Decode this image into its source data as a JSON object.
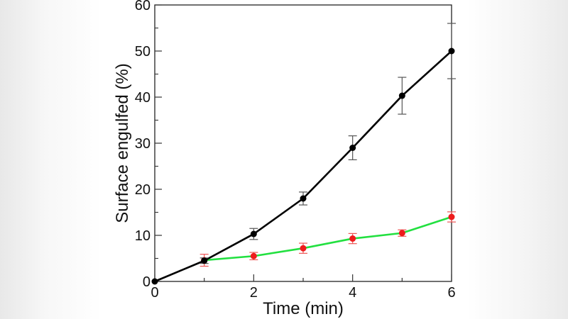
{
  "chart_data": {
    "type": "line",
    "title": "",
    "xlabel": "Time (min)",
    "ylabel": "Surface engulfed (%)",
    "xlim": [
      0,
      6
    ],
    "ylim": [
      0,
      60
    ],
    "x_ticks": [
      "0",
      "2",
      "4",
      "6"
    ],
    "y_ticks": [
      "0",
      "10",
      "20",
      "30",
      "40",
      "50",
      "60"
    ],
    "grid": false,
    "legend": null,
    "series": [
      {
        "name": "black series",
        "line_color": "#000000",
        "marker_color": "#000000",
        "errorbar_color": "#555555",
        "x": [
          0,
          1,
          2,
          3,
          4,
          5,
          6
        ],
        "values": [
          0,
          4.5,
          10.3,
          18.0,
          29.0,
          40.3,
          50.0
        ],
        "error": [
          0,
          0.6,
          1.2,
          1.4,
          2.6,
          4.0,
          6.0
        ]
      },
      {
        "name": "red/green series",
        "line_color": "#22e040",
        "marker_color": "#ee1c1c",
        "errorbar_color": "#ee5555",
        "x": [
          1,
          2,
          3,
          4,
          5,
          6
        ],
        "values": [
          4.6,
          5.5,
          7.2,
          9.3,
          10.5,
          14.0
        ],
        "error": [
          1.3,
          0.8,
          1.1,
          1.1,
          0.7,
          1.1
        ]
      }
    ]
  }
}
